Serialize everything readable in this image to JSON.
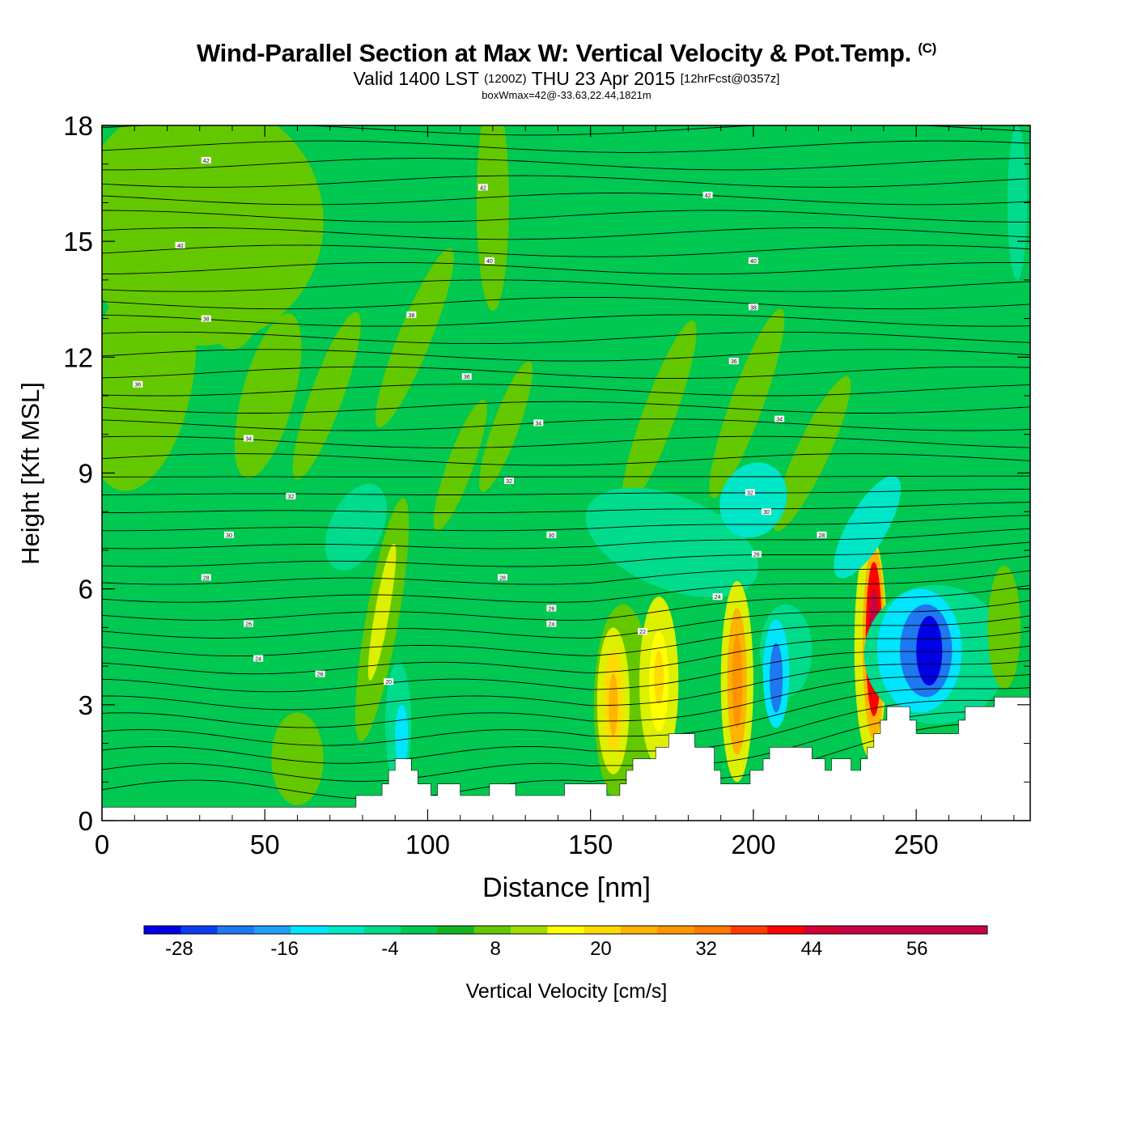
{
  "title": {
    "main": "Wind-Parallel Section at Max W: Vertical Velocity & Pot.Temp.",
    "copyright": "(C)",
    "valid_prefix": "Valid 1400 LST",
    "utc": "(1200Z)",
    "date": "THU 23 Apr 2015",
    "forecast": "[12hrFcst@0357z]",
    "box_info": "boxWmax=42@-33.63,22.44,1821m"
  },
  "chart_data": {
    "type": "heatmap",
    "xlabel": "Distance [nm]",
    "ylabel": "Height [Kft MSL]",
    "xlim": [
      0,
      285
    ],
    "ylim": [
      0,
      18
    ],
    "x_ticks": [
      0,
      50,
      100,
      150,
      200,
      250
    ],
    "y_ticks": [
      0,
      3,
      6,
      9,
      12,
      15,
      18
    ],
    "colorbar": {
      "label": "Vertical Velocity [cm/s]",
      "min": -32,
      "max": 64,
      "step": 4,
      "tick_values": [
        -28,
        -16,
        -4,
        8,
        20,
        32,
        44,
        56
      ],
      "colors": [
        "#0000e6",
        "#0a3cf0",
        "#1e78f0",
        "#1ea0f5",
        "#00e6ff",
        "#00e6c8",
        "#00dc8c",
        "#00c850",
        "#14b41e",
        "#64c800",
        "#a0dc00",
        "#dcf000",
        "#ffff00",
        "#ffdc00",
        "#ffb400",
        "#ff9600",
        "#ff7800",
        "#ff3c00",
        "#ff0000",
        "#d20032",
        "#c80046"
      ]
    },
    "theta_contours": {
      "field": "Potential temperature",
      "labels": [
        {
          "x": 32,
          "y": 17.1,
          "text": "42"
        },
        {
          "x": 117,
          "y": 16.4,
          "text": "42"
        },
        {
          "x": 186,
          "y": 16.2,
          "text": "42"
        },
        {
          "x": 24,
          "y": 14.9,
          "text": "40"
        },
        {
          "x": 119,
          "y": 14.5,
          "text": "40"
        },
        {
          "x": 200,
          "y": 14.5,
          "text": "40"
        },
        {
          "x": 32,
          "y": 13.0,
          "text": "38"
        },
        {
          "x": 95,
          "y": 13.1,
          "text": "38"
        },
        {
          "x": 200,
          "y": 13.3,
          "text": "38"
        },
        {
          "x": 11,
          "y": 11.3,
          "text": "36"
        },
        {
          "x": 112,
          "y": 11.5,
          "text": "36"
        },
        {
          "x": 194,
          "y": 11.9,
          "text": "36"
        },
        {
          "x": 45,
          "y": 9.9,
          "text": "34"
        },
        {
          "x": 134,
          "y": 10.3,
          "text": "34"
        },
        {
          "x": 208,
          "y": 10.4,
          "text": "34"
        },
        {
          "x": 58,
          "y": 8.4,
          "text": "32"
        },
        {
          "x": 125,
          "y": 8.8,
          "text": "32"
        },
        {
          "x": 199,
          "y": 8.5,
          "text": "32"
        },
        {
          "x": 39,
          "y": 7.4,
          "text": "30"
        },
        {
          "x": 138,
          "y": 7.4,
          "text": "30"
        },
        {
          "x": 204,
          "y": 8.0,
          "text": "30"
        },
        {
          "x": 221,
          "y": 7.4,
          "text": "28"
        },
        {
          "x": 32,
          "y": 6.3,
          "text": "28"
        },
        {
          "x": 123,
          "y": 6.3,
          "text": "28"
        },
        {
          "x": 201,
          "y": 6.9,
          "text": "26"
        },
        {
          "x": 138,
          "y": 5.5,
          "text": "26"
        },
        {
          "x": 189,
          "y": 5.8,
          "text": "24"
        },
        {
          "x": 45,
          "y": 5.1,
          "text": "26"
        },
        {
          "x": 138,
          "y": 5.1,
          "text": "24"
        },
        {
          "x": 166,
          "y": 4.9,
          "text": "22"
        },
        {
          "x": 48,
          "y": 4.2,
          "text": "24"
        },
        {
          "x": 67,
          "y": 3.8,
          "text": "26"
        },
        {
          "x": 88,
          "y": 3.6,
          "text": "20"
        }
      ]
    },
    "terrain_profile": [
      [
        0,
        0.35
      ],
      [
        78,
        0.35
      ],
      [
        78,
        0.65
      ],
      [
        86,
        0.65
      ],
      [
        86,
        0.95
      ],
      [
        88,
        0.95
      ],
      [
        88,
        1.3
      ],
      [
        90,
        1.3
      ],
      [
        90,
        1.6
      ],
      [
        95,
        1.6
      ],
      [
        95,
        1.3
      ],
      [
        97,
        1.3
      ],
      [
        97,
        0.95
      ],
      [
        101,
        0.95
      ],
      [
        101,
        0.65
      ],
      [
        103,
        0.65
      ],
      [
        103,
        0.95
      ],
      [
        110,
        0.95
      ],
      [
        110,
        0.65
      ],
      [
        119,
        0.65
      ],
      [
        119,
        0.95
      ],
      [
        127,
        0.95
      ],
      [
        127,
        0.65
      ],
      [
        142,
        0.65
      ],
      [
        142,
        0.95
      ],
      [
        155,
        0.95
      ],
      [
        155,
        0.65
      ],
      [
        159,
        0.65
      ],
      [
        159,
        0.95
      ],
      [
        161,
        0.95
      ],
      [
        161,
        1.3
      ],
      [
        163,
        1.3
      ],
      [
        163,
        1.6
      ],
      [
        170,
        1.6
      ],
      [
        170,
        1.9
      ],
      [
        174,
        1.9
      ],
      [
        174,
        2.25
      ],
      [
        182,
        2.25
      ],
      [
        182,
        1.9
      ],
      [
        188,
        1.9
      ],
      [
        188,
        1.3
      ],
      [
        190,
        1.3
      ],
      [
        190,
        0.95
      ],
      [
        199,
        0.95
      ],
      [
        199,
        1.3
      ],
      [
        203,
        1.3
      ],
      [
        203,
        1.6
      ],
      [
        205,
        1.6
      ],
      [
        205,
        1.9
      ],
      [
        218,
        1.9
      ],
      [
        218,
        1.6
      ],
      [
        222,
        1.6
      ],
      [
        222,
        1.3
      ],
      [
        224,
        1.3
      ],
      [
        224,
        1.6
      ],
      [
        230,
        1.6
      ],
      [
        230,
        1.3
      ],
      [
        233,
        1.3
      ],
      [
        233,
        1.6
      ],
      [
        235,
        1.6
      ],
      [
        235,
        1.9
      ],
      [
        237,
        1.9
      ],
      [
        237,
        2.25
      ],
      [
        239,
        2.25
      ],
      [
        239,
        2.6
      ],
      [
        241,
        2.6
      ],
      [
        241,
        2.95
      ],
      [
        248,
        2.95
      ],
      [
        248,
        2.6
      ],
      [
        250,
        2.6
      ],
      [
        250,
        2.25
      ],
      [
        263,
        2.25
      ],
      [
        263,
        2.6
      ],
      [
        265,
        2.6
      ],
      [
        265,
        2.95
      ],
      [
        274,
        2.95
      ],
      [
        274,
        3.2
      ],
      [
        285,
        3.2
      ]
    ],
    "w_features": [
      {
        "x": 237,
        "y": 4.7,
        "peak": 60
      },
      {
        "x": 195,
        "y": 3.7,
        "peak": 32
      },
      {
        "x": 157,
        "y": 3.1,
        "peak": 26
      },
      {
        "x": 171,
        "y": 3.6,
        "peak": 22
      },
      {
        "x": 254,
        "y": 4.4,
        "peak": -30
      },
      {
        "x": 244,
        "y": 5.2,
        "peak": -26
      },
      {
        "x": 207,
        "y": 3.8,
        "peak": -24
      },
      {
        "x": 91,
        "y": 2.5,
        "peak": -10
      },
      {
        "x": 86,
        "y": 5.5,
        "peak": 12
      }
    ]
  }
}
